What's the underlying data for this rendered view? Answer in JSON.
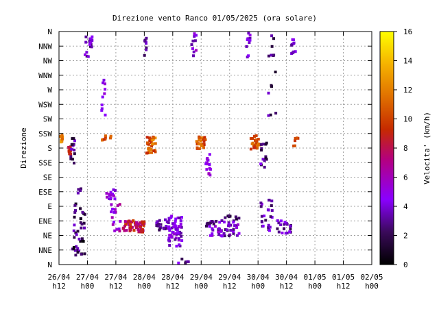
{
  "chart_data": {
    "type": "scatter",
    "title": "Direzione vento Ranco 01/05/2025 (ora solare)",
    "ylabel": "Direzione",
    "xlabel": "",
    "colorbar": {
      "label": "Velocita' (km/h)",
      "range": [
        0,
        16
      ],
      "ticks": [
        "0",
        "2",
        "4",
        "6",
        "8",
        "10",
        "12",
        "14",
        "16"
      ],
      "colors": [
        "#000000",
        "#5a1a8a",
        "#8a00ff",
        "#c4006a",
        "#d14000",
        "#e88a00",
        "#ffd400",
        "#ffff00"
      ]
    },
    "x_ticks": [
      {
        "date": "26/04",
        "hour": "h12"
      },
      {
        "date": "27/04",
        "hour": "h00"
      },
      {
        "date": "27/04",
        "hour": "h12"
      },
      {
        "date": "28/04",
        "hour": "h00"
      },
      {
        "date": "28/04",
        "hour": "h12"
      },
      {
        "date": "29/04",
        "hour": "h00"
      },
      {
        "date": "29/04",
        "hour": "h12"
      },
      {
        "date": "30/04",
        "hour": "h00"
      },
      {
        "date": "30/04",
        "hour": "h12"
      },
      {
        "date": "01/05",
        "hour": "h00"
      },
      {
        "date": "01/05",
        "hour": "h12"
      },
      {
        "date": "02/05",
        "hour": "h00"
      }
    ],
    "y_ticks": [
      "N",
      "NNE",
      "NE",
      "ENE",
      "E",
      "ESE",
      "SE",
      "SSE",
      "S",
      "SSW",
      "SW",
      "WSW",
      "W",
      "WNW",
      "NW",
      "NNW",
      "N"
    ],
    "x_range_hours": [
      0,
      132
    ],
    "y_range_deg": [
      0,
      360
    ],
    "grid": true,
    "clusters": [
      {
        "x": [
          0,
          1.5
        ],
        "y": [
          188,
          202
        ],
        "v": [
          11,
          14
        ],
        "n": 22
      },
      {
        "x": [
          4,
          5
        ],
        "y": [
          168,
          182
        ],
        "v": [
          8,
          9.5
        ],
        "n": 14
      },
      {
        "x": [
          5,
          7
        ],
        "y": [
          150,
          202
        ],
        "v": [
          0,
          4
        ],
        "n": 14
      },
      {
        "x": [
          5,
          11
        ],
        "y": [
          14,
          95
        ],
        "v": [
          0,
          4
        ],
        "n": 40
      },
      {
        "x": [
          8,
          10
        ],
        "y": [
          108,
          118
        ],
        "v": [
          2,
          4
        ],
        "n": 4
      },
      {
        "x": [
          11,
          14
        ],
        "y": [
          320,
          360
        ],
        "v": [
          2,
          5
        ],
        "n": 18
      },
      {
        "x": [
          18,
          22
        ],
        "y": [
          192,
          200
        ],
        "v": [
          9,
          12
        ],
        "n": 8
      },
      {
        "x": [
          18,
          20
        ],
        "y": [
          230,
          290
        ],
        "v": [
          4,
          6
        ],
        "n": 10
      },
      {
        "x": [
          20,
          24
        ],
        "y": [
          100,
          118
        ],
        "v": [
          3,
          6
        ],
        "n": 14
      },
      {
        "x": [
          22,
          26
        ],
        "y": [
          40,
          95
        ],
        "v": [
          4,
          7
        ],
        "n": 16
      },
      {
        "x": [
          27,
          36
        ],
        "y": [
          50,
          68
        ],
        "v": [
          6,
          10
        ],
        "n": 60
      },
      {
        "x": [
          36,
          37
        ],
        "y": [
          320,
          360
        ],
        "v": [
          2,
          4
        ],
        "n": 8
      },
      {
        "x": [
          37,
          41
        ],
        "y": [
          172,
          200
        ],
        "v": [
          9,
          13
        ],
        "n": 36
      },
      {
        "x": [
          41,
          46
        ],
        "y": [
          52,
          70
        ],
        "v": [
          2,
          4
        ],
        "n": 20
      },
      {
        "x": [
          46,
          52
        ],
        "y": [
          28,
          75
        ],
        "v": [
          3,
          5.5
        ],
        "n": 60
      },
      {
        "x": [
          50,
          55
        ],
        "y": [
          0,
          10
        ],
        "v": [
          2,
          5
        ],
        "n": 6
      },
      {
        "x": [
          56,
          58
        ],
        "y": [
          320,
          358
        ],
        "v": [
          3,
          6
        ],
        "n": 10
      },
      {
        "x": [
          58,
          62
        ],
        "y": [
          178,
          198
        ],
        "v": [
          9,
          12
        ],
        "n": 32
      },
      {
        "x": [
          62,
          64
        ],
        "y": [
          138,
          172
        ],
        "v": [
          4,
          6
        ],
        "n": 14
      },
      {
        "x": [
          62,
          76
        ],
        "y": [
          44,
          68
        ],
        "v": [
          2,
          5.5
        ],
        "n": 60
      },
      {
        "x": [
          70,
          76
        ],
        "y": [
          66,
          76
        ],
        "v": [
          1,
          3
        ],
        "n": 8
      },
      {
        "x": [
          79,
          81
        ],
        "y": [
          320,
          358
        ],
        "v": [
          3,
          5
        ],
        "n": 10
      },
      {
        "x": [
          81,
          85
        ],
        "y": [
          178,
          200
        ],
        "v": [
          9,
          12
        ],
        "n": 26
      },
      {
        "x": [
          85,
          88
        ],
        "y": [
          150,
          190
        ],
        "v": [
          1,
          5
        ],
        "n": 14
      },
      {
        "x": [
          85,
          90
        ],
        "y": [
          52,
          102
        ],
        "v": [
          2,
          5
        ],
        "n": 24
      },
      {
        "x": [
          88,
          92
        ],
        "y": [
          230,
          358
        ],
        "v": [
          1,
          4
        ],
        "n": 14
      },
      {
        "x": [
          92,
          98
        ],
        "y": [
          48,
          68
        ],
        "v": [
          2,
          5
        ],
        "n": 22
      },
      {
        "x": [
          98,
          100
        ],
        "y": [
          320,
          358
        ],
        "v": [
          3,
          5
        ],
        "n": 10
      },
      {
        "x": [
          99,
          101
        ],
        "y": [
          178,
          196
        ],
        "v": [
          9,
          11
        ],
        "n": 6
      }
    ]
  }
}
